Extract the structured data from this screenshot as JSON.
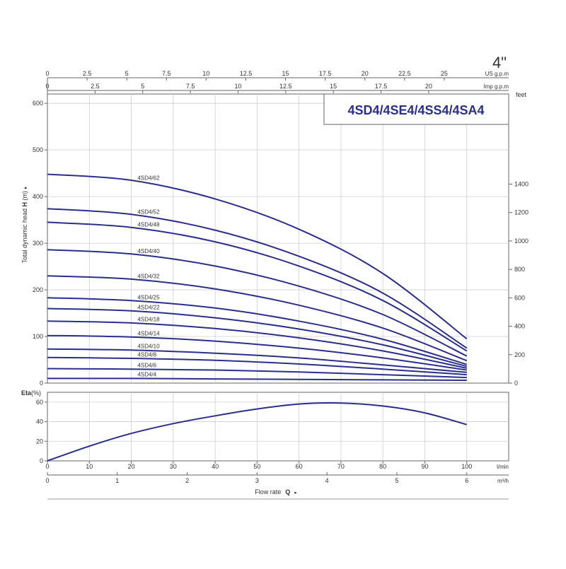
{
  "chart_data": [
    {
      "type": "line",
      "title": "4SD4/4SE4/4SS4/4SA4",
      "corner_label": "4\"",
      "ylabel": "Total dynamic head H (m)",
      "ylabel_parts": {
        "pre": "Total dynamic head ",
        "bold": "H",
        "post": " (m)",
        "arrow": "▸"
      },
      "xlim": [
        0,
        110
      ],
      "ylim": [
        0,
        620
      ],
      "y_ticks": [
        0,
        100,
        200,
        300,
        400,
        500,
        600
      ],
      "right_axis": {
        "label": "feet",
        "ticks": [
          0,
          200,
          400,
          600,
          800,
          1000,
          1200,
          1400
        ]
      },
      "top_axes": [
        {
          "label": "US g.p.m",
          "ticks": [
            0,
            2.5,
            5,
            7.5,
            10,
            12.5,
            15,
            17.5,
            20,
            22.5,
            25
          ],
          "tick_labels": [
            "0",
            "2.5",
            "5",
            "7.5",
            "10",
            "12.5",
            "15",
            "17.5",
            "20",
            "22.5",
            "25"
          ]
        },
        {
          "label": "Imp g.p.m",
          "ticks": [
            0,
            2.5,
            5,
            7.5,
            10,
            12.5,
            15,
            17.5,
            20
          ],
          "tick_labels": [
            "0",
            "2.5",
            "5",
            "7.5",
            "10",
            "12.5",
            "15",
            "17.5",
            "20"
          ]
        }
      ],
      "grid": true,
      "series": [
        {
          "name": "4SD4/62",
          "x": [
            0,
            20,
            40,
            60,
            80,
            100
          ],
          "values": [
            448,
            435,
            395,
            330,
            235,
            95
          ]
        },
        {
          "name": "4SD4/52",
          "x": [
            0,
            20,
            40,
            60,
            80,
            100
          ],
          "values": [
            374,
            362,
            328,
            272,
            193,
            75
          ]
        },
        {
          "name": "4SD4/48",
          "x": [
            0,
            20,
            40,
            60,
            80,
            100
          ],
          "values": [
            345,
            334,
            303,
            251,
            177,
            69
          ]
        },
        {
          "name": "4SD4/40",
          "x": [
            0,
            20,
            40,
            60,
            80,
            100
          ],
          "values": [
            286,
            277,
            251,
            208,
            147,
            58
          ]
        },
        {
          "name": "4SD4/32",
          "x": [
            0,
            20,
            40,
            60,
            80,
            100
          ],
          "values": [
            230,
            223,
            202,
            167,
            118,
            48
          ]
        },
        {
          "name": "4SD4/25",
          "x": [
            0,
            20,
            40,
            60,
            80,
            100
          ],
          "values": [
            183,
            177,
            161,
            133,
            94,
            40
          ]
        },
        {
          "name": "4SD4/22",
          "x": [
            0,
            20,
            40,
            60,
            80,
            100
          ],
          "values": [
            160,
            155,
            140,
            116,
            82,
            36
          ]
        },
        {
          "name": "4SD4/18",
          "x": [
            0,
            20,
            40,
            60,
            80,
            100
          ],
          "values": [
            133,
            129,
            117,
            97,
            69,
            32
          ]
        },
        {
          "name": "4SD4/14",
          "x": [
            0,
            20,
            40,
            60,
            80,
            100
          ],
          "values": [
            102,
            99,
            90,
            75,
            54,
            28
          ]
        },
        {
          "name": "4SD4/10",
          "x": [
            0,
            20,
            40,
            60,
            80,
            100
          ],
          "values": [
            73,
            71,
            64,
            54,
            39,
            23
          ]
        },
        {
          "name": "4SD4/8",
          "x": [
            0,
            20,
            40,
            60,
            80,
            100
          ],
          "values": [
            55,
            53,
            49,
            41,
            30,
            18
          ]
        },
        {
          "name": "4SD4/6",
          "x": [
            0,
            20,
            40,
            60,
            80,
            100
          ],
          "values": [
            31,
            30,
            28,
            24,
            18,
            12
          ]
        },
        {
          "name": "4SD4/4",
          "x": [
            0,
            20,
            40,
            60,
            80,
            100
          ],
          "values": [
            10,
            10,
            9,
            8,
            7,
            6
          ]
        }
      ]
    },
    {
      "type": "line",
      "ylabel": "Eta(%)",
      "ylabel_parts": {
        "bold": "Eta",
        "post": "(%)"
      },
      "xlim": [
        0,
        110
      ],
      "ylim": [
        0,
        70
      ],
      "y_ticks": [
        0,
        20,
        40,
        60
      ],
      "x_ticks": [
        0,
        10,
        20,
        30,
        40,
        50,
        60,
        70,
        80,
        90,
        100
      ],
      "x_unit": "l/min",
      "grid": true,
      "series": [
        {
          "x": [
            0,
            10,
            20,
            30,
            40,
            50,
            60,
            70,
            80,
            90,
            100
          ],
          "values": [
            0,
            15,
            28,
            38,
            46,
            53,
            58,
            59,
            56,
            49,
            37
          ]
        }
      ]
    }
  ],
  "bottom_axis": {
    "ticks": [
      0,
      1,
      2,
      3,
      4,
      5,
      6
    ],
    "unit": "m³/h",
    "label": "Flow rate",
    "label_bold": "Q",
    "arrow": "▸"
  },
  "colors": {
    "curve": "#2a2e8c",
    "grid": "#cfcfcf",
    "axis": "#666666"
  }
}
